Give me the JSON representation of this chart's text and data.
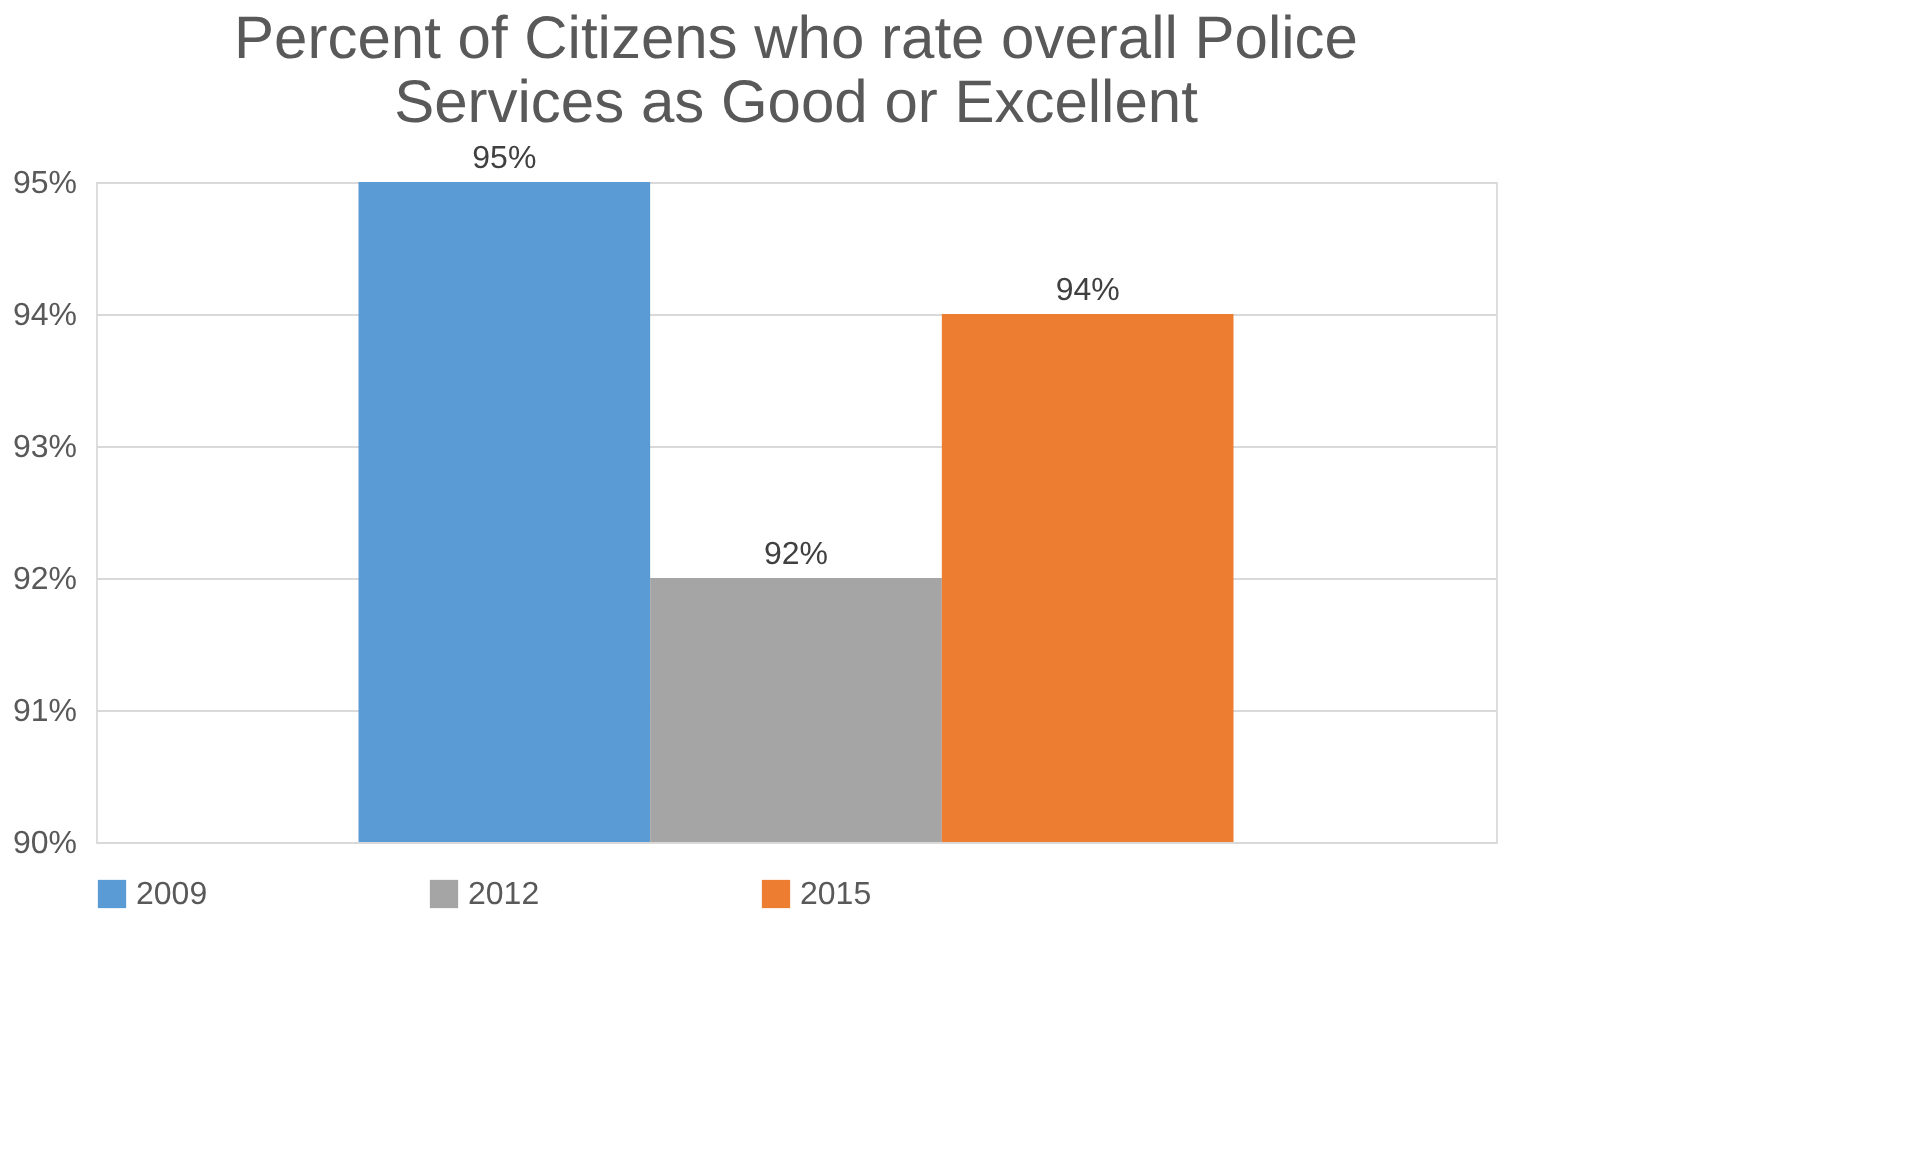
{
  "chart_data": {
    "type": "bar",
    "title": [
      "Percent of Citizens who rate overall Police",
      "Services as Good or Excellent"
    ],
    "categories": [
      null
    ],
    "series": [
      {
        "name": "2009",
        "color": "#5b9bd5",
        "values": [
          95
        ],
        "value_labels": [
          "95%"
        ]
      },
      {
        "name": "2012",
        "color": "#a5a5a5",
        "values": [
          92
        ],
        "value_labels": [
          "92%"
        ]
      },
      {
        "name": "2015",
        "color": "#ed7d31",
        "values": [
          94
        ],
        "value_labels": [
          "94%"
        ]
      }
    ],
    "ylim": [
      90,
      95
    ],
    "yticks": [
      {
        "value": 90,
        "label": "90%"
      },
      {
        "value": 91,
        "label": "91%"
      },
      {
        "value": 92,
        "label": "92%"
      },
      {
        "value": 93,
        "label": "93%"
      },
      {
        "value": 94,
        "label": "94%"
      },
      {
        "value": 95,
        "label": "95%"
      }
    ],
    "grid": "y",
    "legend": "bottom"
  }
}
